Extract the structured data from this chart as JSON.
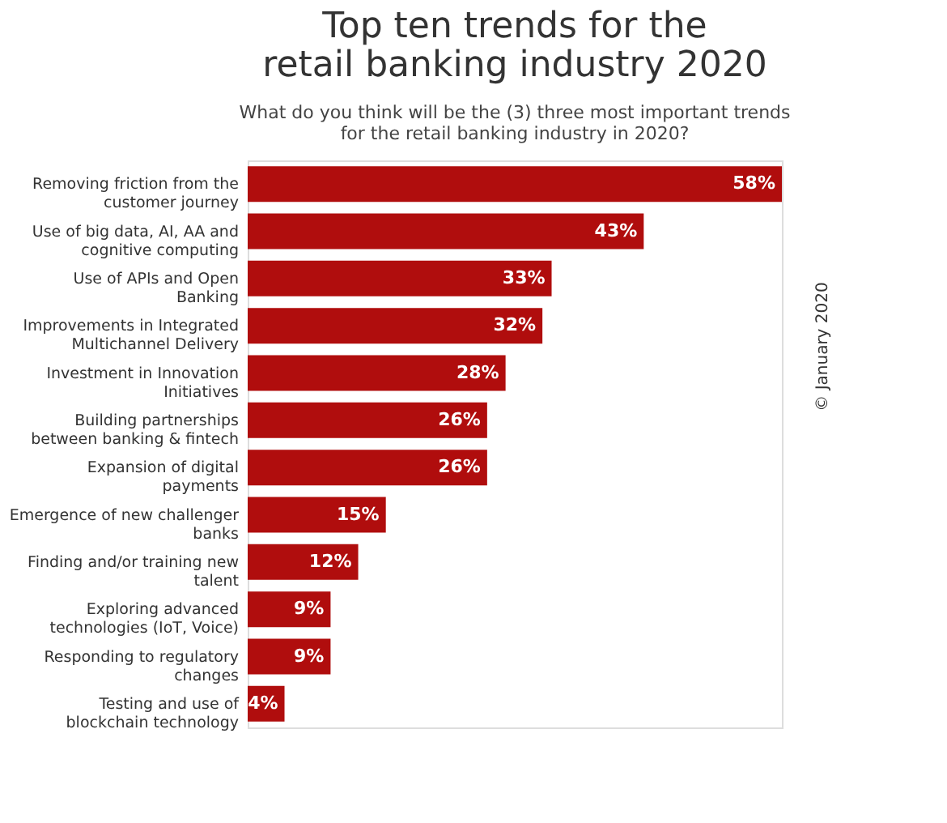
{
  "chart_data": {
    "type": "bar",
    "orientation": "horizontal",
    "title": "Top ten trends for the retail banking industry 2020",
    "subtitle": "What do you think will be the (3) three most important trends for the retail banking industry in 2020?",
    "categories": [
      "Removing friction from the customer journey",
      "Use of big data, AI, AA and cognitive computing",
      "Use of APIs and Open Banking",
      "Improvements in Integrated Multichannel Delivery",
      "Investment in Innovation Initiatives",
      "Building partnerships between banking & fintech",
      "Expansion of digital payments",
      "Emergence of new challenger banks",
      "Finding and/or training new talent",
      "Exploring advanced technologies (IoT, Voice)",
      "Responding to regulatory changes",
      "Testing and use of blockchain technology"
    ],
    "values": [
      58,
      43,
      33,
      32,
      28,
      26,
      26,
      15,
      12,
      9,
      9,
      4
    ],
    "value_labels": [
      "58%",
      "43%",
      "33%",
      "32%",
      "28%",
      "26%",
      "26%",
      "15%",
      "12%",
      "9%",
      "9%",
      "4%"
    ],
    "color": "#b00d0d",
    "annotations": [
      "© January 2020"
    ]
  }
}
